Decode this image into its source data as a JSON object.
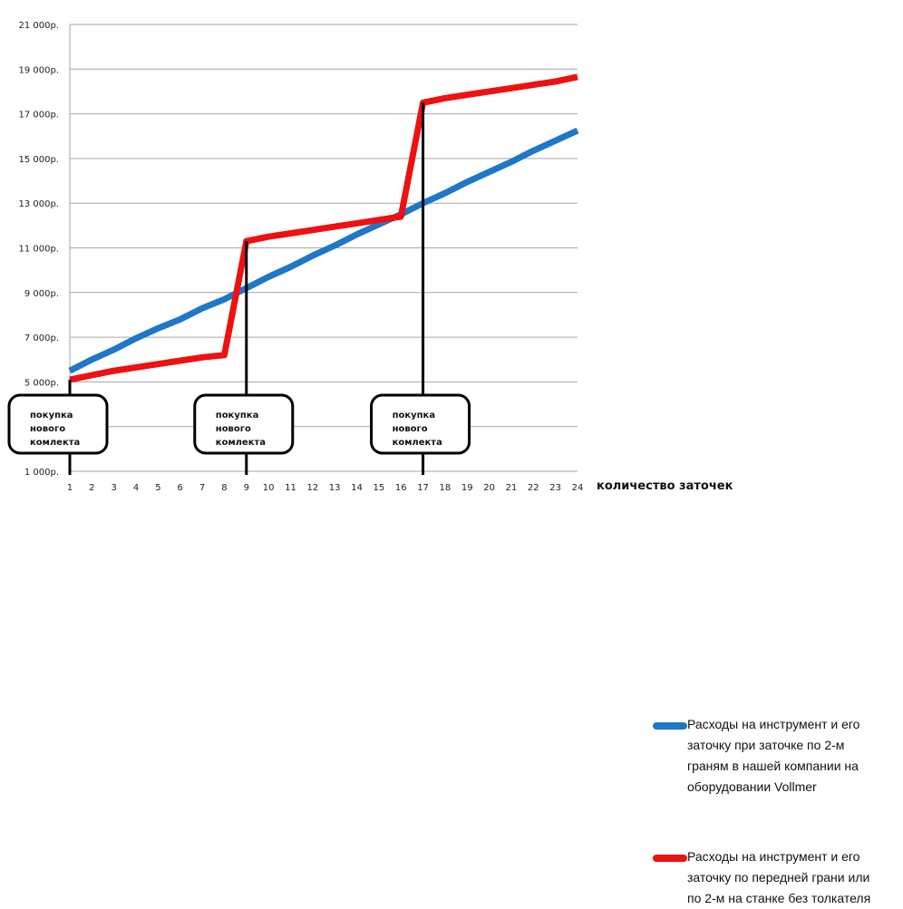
{
  "chart_data": {
    "type": "line",
    "x": [
      1,
      2,
      3,
      4,
      5,
      6,
      7,
      8,
      9,
      10,
      11,
      12,
      13,
      14,
      15,
      16,
      17,
      18,
      19,
      20,
      21,
      22,
      23,
      24
    ],
    "xlabel": "количество заточек",
    "ylabel": "",
    "ylim": [
      1000,
      21000
    ],
    "yticks": [
      {
        "value": 1000,
        "label": "1 000р."
      },
      {
        "value": 3000,
        "label": ""
      },
      {
        "value": 5000,
        "label": "5 000р."
      },
      {
        "value": 7000,
        "label": "7 000р."
      },
      {
        "value": 9000,
        "label": "9 000р."
      },
      {
        "value": 11000,
        "label": "11 000р."
      },
      {
        "value": 13000,
        "label": "13 000р."
      },
      {
        "value": 15000,
        "label": "15 000р."
      },
      {
        "value": 17000,
        "label": "17 000р."
      },
      {
        "value": 19000,
        "label": "19 000р."
      },
      {
        "value": 21000,
        "label": "21 000р."
      }
    ],
    "grid": true,
    "legend_position": "right",
    "series": [
      {
        "name": "Расходы на инструмент и его\nзаточку при заточке по 2-м\nграням в нашей компании на\nоборудовании Vollmer",
        "color": "#1f77c8",
        "values": [
          5500,
          6000,
          6450,
          6950,
          7400,
          7800,
          8300,
          8700,
          9200,
          9700,
          10150,
          10650,
          11100,
          11600,
          12050,
          12500,
          13000,
          13450,
          13950,
          14400,
          14850,
          15350,
          15800,
          16250
        ]
      },
      {
        "name": "Расходы на инструмент и его\nзаточку по передней грани или\nпо 2-м на станке без толкателя",
        "color": "#ee1111",
        "values": [
          5100,
          5300,
          5500,
          5650,
          5800,
          5950,
          6100,
          6200,
          11300,
          11500,
          11650,
          11800,
          11950,
          12100,
          12250,
          12400,
          17500,
          17700,
          17850,
          18000,
          18150,
          18300,
          18450,
          18650
        ]
      }
    ],
    "annotations": [
      {
        "x": 1,
        "text": "покупка\nнового\nкомлекта"
      },
      {
        "x": 9,
        "text": "покупка\nнового\nкомлекта"
      },
      {
        "x": 17,
        "text": "покупка\nнового\nкомлекта"
      }
    ]
  }
}
